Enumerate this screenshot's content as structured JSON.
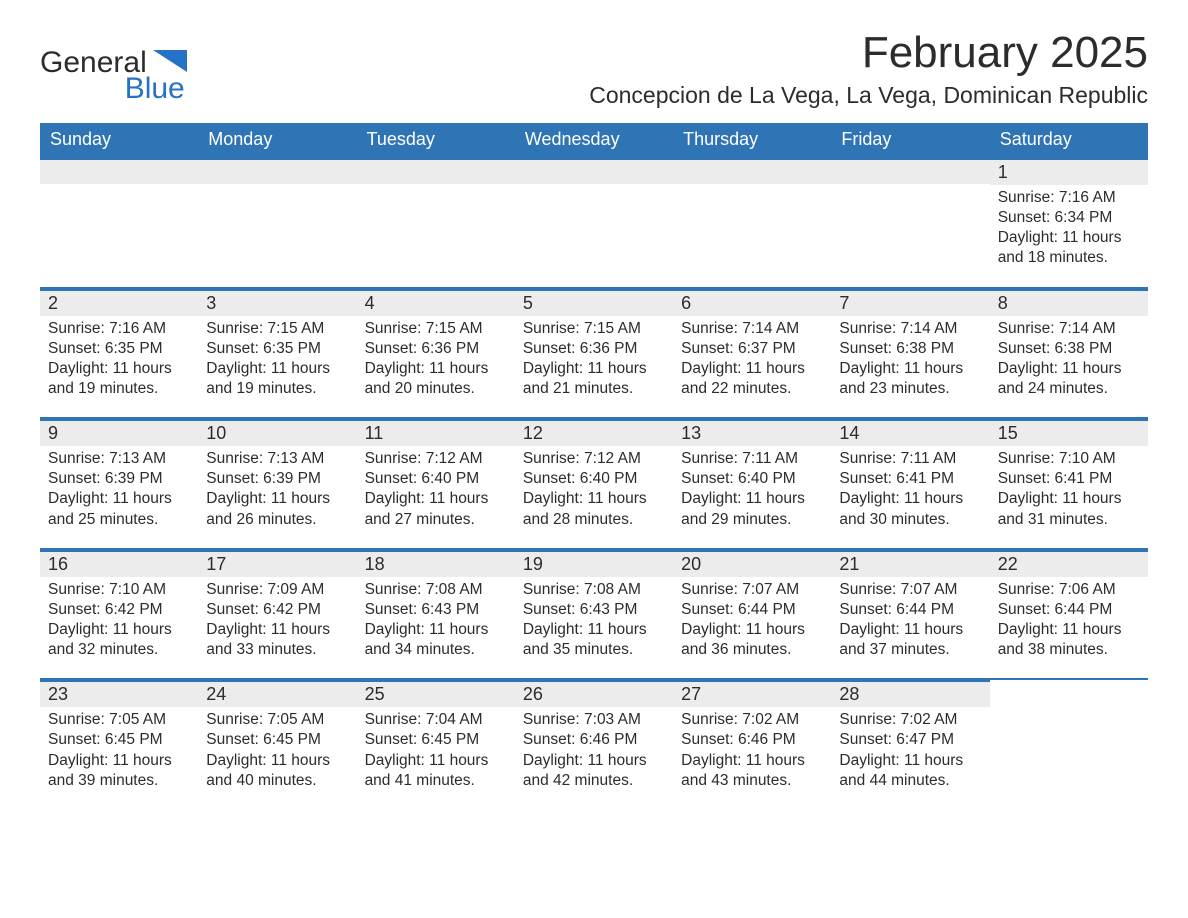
{
  "logo": {
    "line1": "General",
    "line2": "Blue",
    "tri_color": "#2672c4"
  },
  "title": "February 2025",
  "location": "Concepcion de La Vega, La Vega, Dominican Republic",
  "colors": {
    "header_bg": "#2f75b5",
    "daynum_bg": "#ececec",
    "row_border": "#2f75b5",
    "text": "#2c2c2c",
    "logo_blue": "#2672c4"
  },
  "daysOfWeek": [
    "Sunday",
    "Monday",
    "Tuesday",
    "Wednesday",
    "Thursday",
    "Friday",
    "Saturday"
  ],
  "weeks": [
    [
      null,
      null,
      null,
      null,
      null,
      null,
      {
        "n": "1",
        "sr": "Sunrise: 7:16 AM",
        "ss": "Sunset: 6:34 PM",
        "d1": "Daylight: 11 hours",
        "d2": "and 18 minutes."
      }
    ],
    [
      {
        "n": "2",
        "sr": "Sunrise: 7:16 AM",
        "ss": "Sunset: 6:35 PM",
        "d1": "Daylight: 11 hours",
        "d2": "and 19 minutes."
      },
      {
        "n": "3",
        "sr": "Sunrise: 7:15 AM",
        "ss": "Sunset: 6:35 PM",
        "d1": "Daylight: 11 hours",
        "d2": "and 19 minutes."
      },
      {
        "n": "4",
        "sr": "Sunrise: 7:15 AM",
        "ss": "Sunset: 6:36 PM",
        "d1": "Daylight: 11 hours",
        "d2": "and 20 minutes."
      },
      {
        "n": "5",
        "sr": "Sunrise: 7:15 AM",
        "ss": "Sunset: 6:36 PM",
        "d1": "Daylight: 11 hours",
        "d2": "and 21 minutes."
      },
      {
        "n": "6",
        "sr": "Sunrise: 7:14 AM",
        "ss": "Sunset: 6:37 PM",
        "d1": "Daylight: 11 hours",
        "d2": "and 22 minutes."
      },
      {
        "n": "7",
        "sr": "Sunrise: 7:14 AM",
        "ss": "Sunset: 6:38 PM",
        "d1": "Daylight: 11 hours",
        "d2": "and 23 minutes."
      },
      {
        "n": "8",
        "sr": "Sunrise: 7:14 AM",
        "ss": "Sunset: 6:38 PM",
        "d1": "Daylight: 11 hours",
        "d2": "and 24 minutes."
      }
    ],
    [
      {
        "n": "9",
        "sr": "Sunrise: 7:13 AM",
        "ss": "Sunset: 6:39 PM",
        "d1": "Daylight: 11 hours",
        "d2": "and 25 minutes."
      },
      {
        "n": "10",
        "sr": "Sunrise: 7:13 AM",
        "ss": "Sunset: 6:39 PM",
        "d1": "Daylight: 11 hours",
        "d2": "and 26 minutes."
      },
      {
        "n": "11",
        "sr": "Sunrise: 7:12 AM",
        "ss": "Sunset: 6:40 PM",
        "d1": "Daylight: 11 hours",
        "d2": "and 27 minutes."
      },
      {
        "n": "12",
        "sr": "Sunrise: 7:12 AM",
        "ss": "Sunset: 6:40 PM",
        "d1": "Daylight: 11 hours",
        "d2": "and 28 minutes."
      },
      {
        "n": "13",
        "sr": "Sunrise: 7:11 AM",
        "ss": "Sunset: 6:40 PM",
        "d1": "Daylight: 11 hours",
        "d2": "and 29 minutes."
      },
      {
        "n": "14",
        "sr": "Sunrise: 7:11 AM",
        "ss": "Sunset: 6:41 PM",
        "d1": "Daylight: 11 hours",
        "d2": "and 30 minutes."
      },
      {
        "n": "15",
        "sr": "Sunrise: 7:10 AM",
        "ss": "Sunset: 6:41 PM",
        "d1": "Daylight: 11 hours",
        "d2": "and 31 minutes."
      }
    ],
    [
      {
        "n": "16",
        "sr": "Sunrise: 7:10 AM",
        "ss": "Sunset: 6:42 PM",
        "d1": "Daylight: 11 hours",
        "d2": "and 32 minutes."
      },
      {
        "n": "17",
        "sr": "Sunrise: 7:09 AM",
        "ss": "Sunset: 6:42 PM",
        "d1": "Daylight: 11 hours",
        "d2": "and 33 minutes."
      },
      {
        "n": "18",
        "sr": "Sunrise: 7:08 AM",
        "ss": "Sunset: 6:43 PM",
        "d1": "Daylight: 11 hours",
        "d2": "and 34 minutes."
      },
      {
        "n": "19",
        "sr": "Sunrise: 7:08 AM",
        "ss": "Sunset: 6:43 PM",
        "d1": "Daylight: 11 hours",
        "d2": "and 35 minutes."
      },
      {
        "n": "20",
        "sr": "Sunrise: 7:07 AM",
        "ss": "Sunset: 6:44 PM",
        "d1": "Daylight: 11 hours",
        "d2": "and 36 minutes."
      },
      {
        "n": "21",
        "sr": "Sunrise: 7:07 AM",
        "ss": "Sunset: 6:44 PM",
        "d1": "Daylight: 11 hours",
        "d2": "and 37 minutes."
      },
      {
        "n": "22",
        "sr": "Sunrise: 7:06 AM",
        "ss": "Sunset: 6:44 PM",
        "d1": "Daylight: 11 hours",
        "d2": "and 38 minutes."
      }
    ],
    [
      {
        "n": "23",
        "sr": "Sunrise: 7:05 AM",
        "ss": "Sunset: 6:45 PM",
        "d1": "Daylight: 11 hours",
        "d2": "and 39 minutes."
      },
      {
        "n": "24",
        "sr": "Sunrise: 7:05 AM",
        "ss": "Sunset: 6:45 PM",
        "d1": "Daylight: 11 hours",
        "d2": "and 40 minutes."
      },
      {
        "n": "25",
        "sr": "Sunrise: 7:04 AM",
        "ss": "Sunset: 6:45 PM",
        "d1": "Daylight: 11 hours",
        "d2": "and 41 minutes."
      },
      {
        "n": "26",
        "sr": "Sunrise: 7:03 AM",
        "ss": "Sunset: 6:46 PM",
        "d1": "Daylight: 11 hours",
        "d2": "and 42 minutes."
      },
      {
        "n": "27",
        "sr": "Sunrise: 7:02 AM",
        "ss": "Sunset: 6:46 PM",
        "d1": "Daylight: 11 hours",
        "d2": "and 43 minutes."
      },
      {
        "n": "28",
        "sr": "Sunrise: 7:02 AM",
        "ss": "Sunset: 6:47 PM",
        "d1": "Daylight: 11 hours",
        "d2": "and 44 minutes."
      },
      null
    ]
  ]
}
